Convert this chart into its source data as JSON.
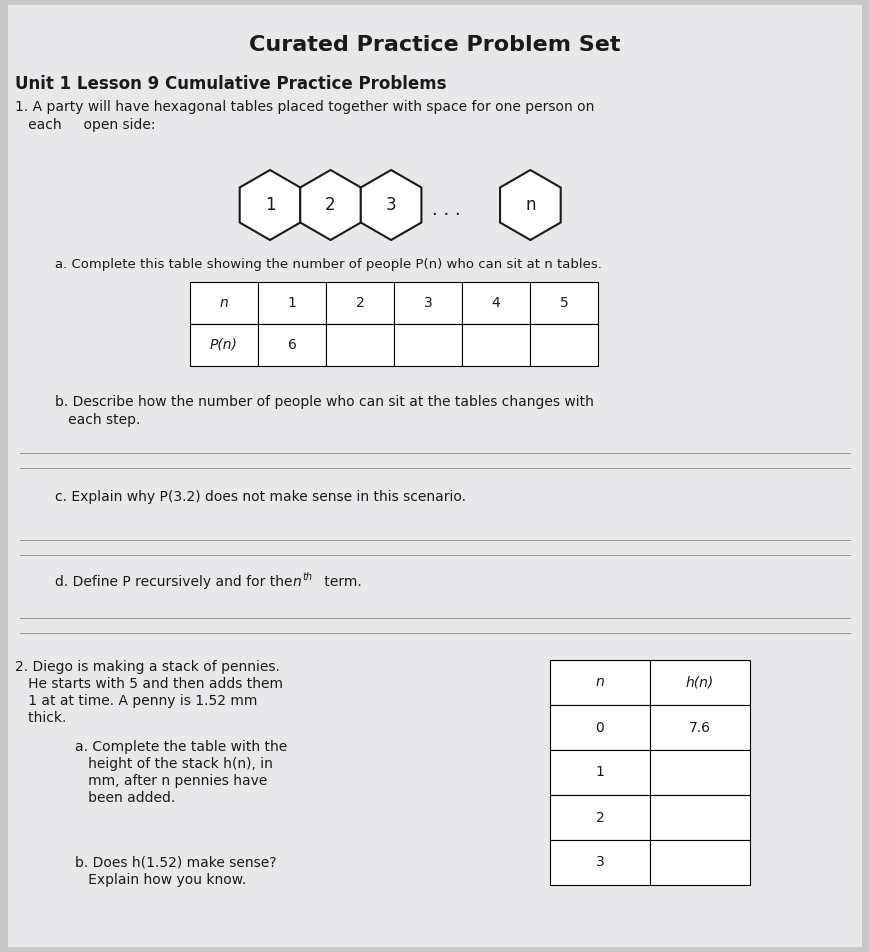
{
  "title": "Curated Practice Problem Set",
  "title_fontsize": 16,
  "subtitle": "Unit 1 Lesson 9 Cumulative Practice Problems",
  "subtitle_fontsize": 12,
  "bg_color": "#c8c8c8",
  "paper_color": "#e8e8e8",
  "text_color": "#1a1a1a",
  "table1_headers": [
    "n",
    "1",
    "2",
    "3",
    "4",
    "5"
  ],
  "table1_row1": [
    "P(n)",
    "6",
    "",
    "",
    "",
    ""
  ],
  "table2_col1": [
    "n",
    "0",
    "1",
    "2",
    "3"
  ],
  "table2_col2": [
    "h(n)",
    "7.6",
    "",
    "",
    ""
  ],
  "hex_color": "#ffffff",
  "hex_edge_color": "#1a1a1a"
}
